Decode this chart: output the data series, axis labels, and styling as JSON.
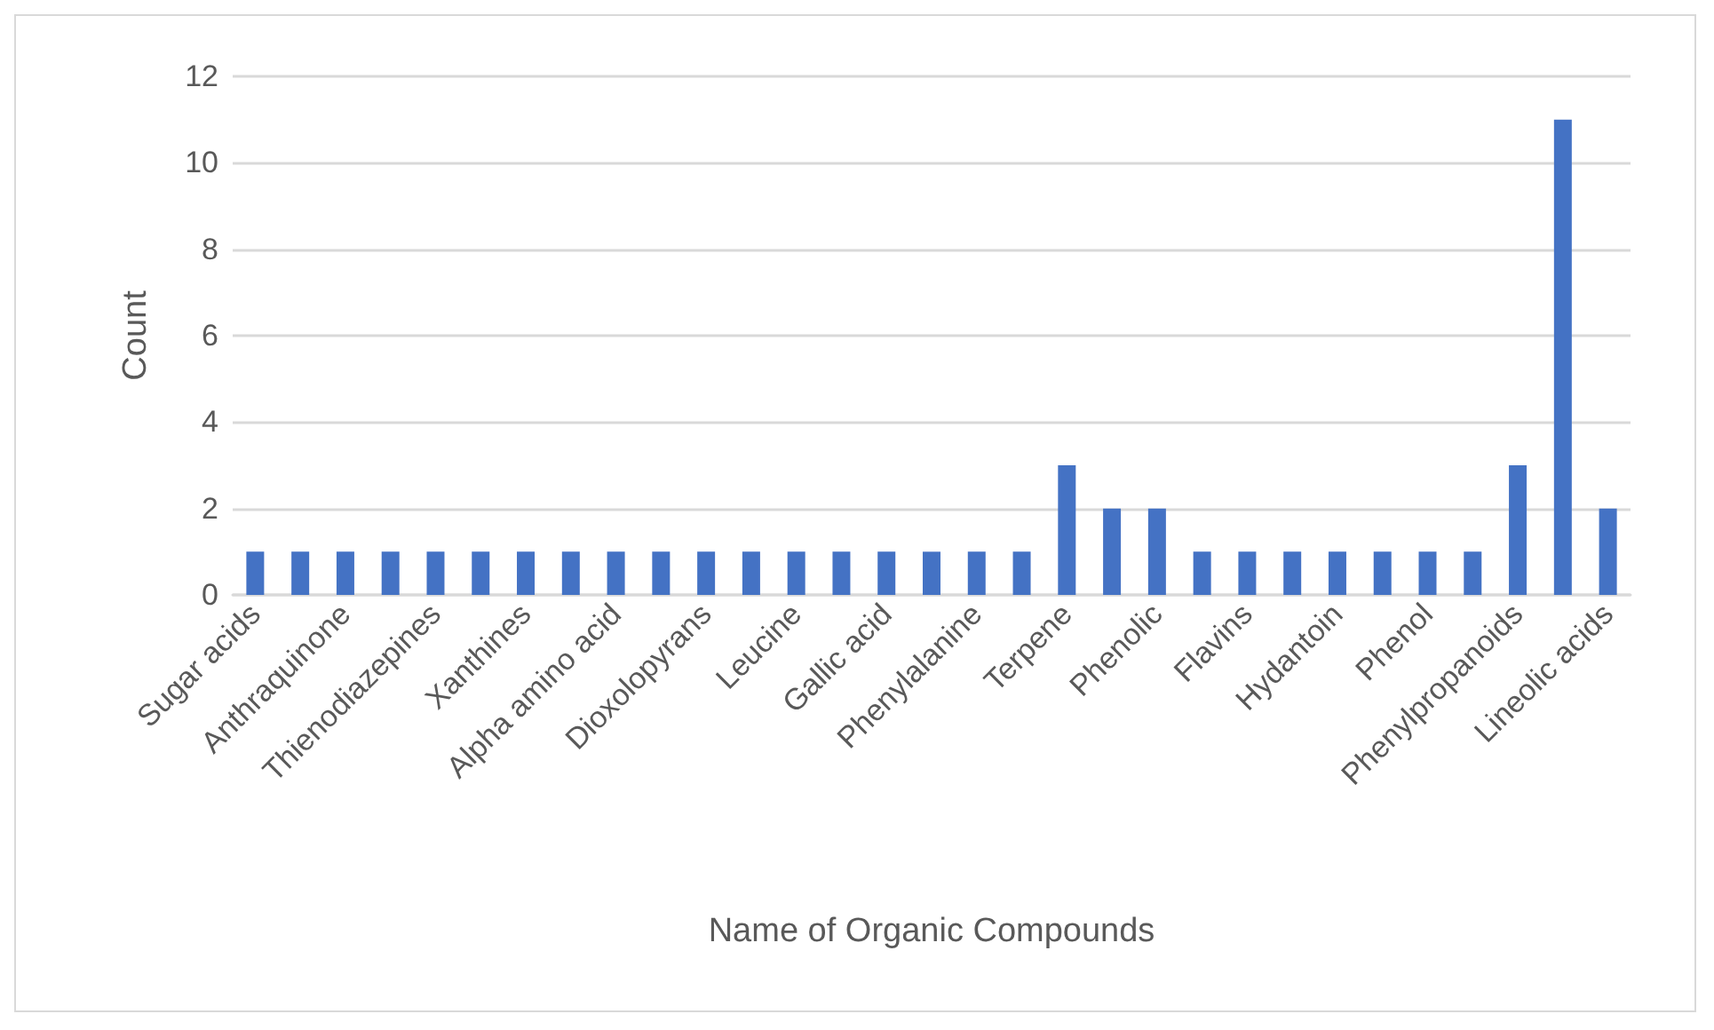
{
  "chart_data": {
    "type": "bar",
    "xlabel": "Name of Organic Compounds",
    "ylabel": "Count",
    "categories": [
      "Sugar acids",
      null,
      "Anthraquinone",
      null,
      "Thienodiazepines",
      null,
      "Xanthines",
      null,
      "Alpha amino acid",
      null,
      "Dioxolopyrans",
      null,
      "Leucine",
      null,
      "Gallic acid",
      null,
      "Phenylalanine",
      null,
      "Terpene",
      null,
      "Phenolic",
      null,
      "Flavins",
      null,
      "Hydantoin",
      null,
      "Phenol",
      null,
      "Phenylpropanoids",
      null,
      "Lineolic acids"
    ],
    "values": [
      1,
      1,
      1,
      1,
      1,
      1,
      1,
      1,
      1,
      1,
      1,
      1,
      1,
      1,
      1,
      1,
      1,
      1,
      3,
      2,
      2,
      1,
      1,
      1,
      1,
      1,
      1,
      1,
      3,
      11,
      2
    ],
    "color": "#4472c4",
    "ylim": [
      0,
      12
    ],
    "yticks": [
      0,
      2,
      4,
      6,
      8,
      10,
      12
    ],
    "grid": "y"
  }
}
